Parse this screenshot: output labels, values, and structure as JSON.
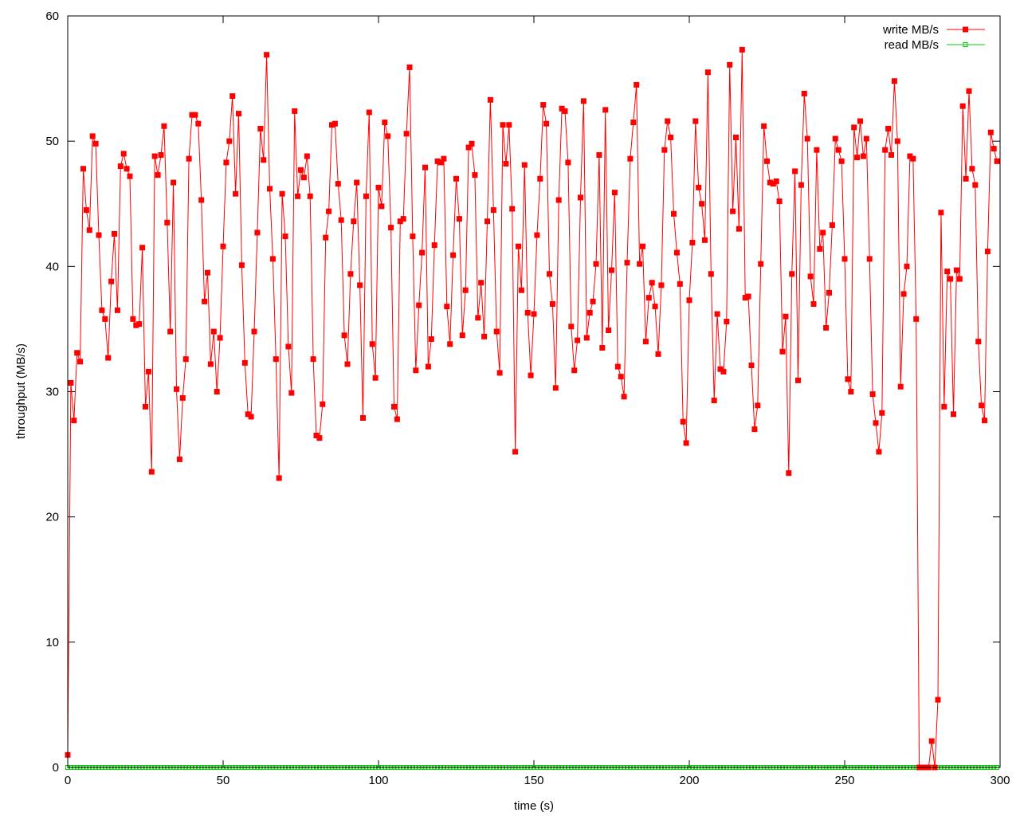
{
  "chart_data": {
    "type": "line",
    "xlabel": "time (s)",
    "ylabel": "throughput (MB/s)",
    "xlim": [
      0,
      300
    ],
    "ylim": [
      0,
      60
    ],
    "xticks": [
      0,
      50,
      100,
      150,
      200,
      250,
      300
    ],
    "yticks": [
      0,
      10,
      20,
      30,
      40,
      50,
      60
    ],
    "grid": false,
    "legend_position": "top-right",
    "x_start": 0,
    "x_step": 1,
    "series": [
      {
        "name": "write MB/s",
        "color": "#ff0000",
        "marker": "filled-square",
        "values": [
          1.0,
          30.7,
          27.7,
          33.1,
          32.4,
          47.8,
          44.5,
          42.9,
          50.4,
          49.8,
          42.5,
          36.5,
          35.8,
          32.7,
          38.8,
          42.6,
          36.5,
          48.0,
          49.0,
          47.8,
          47.2,
          35.8,
          35.3,
          35.4,
          41.5,
          28.8,
          31.6,
          23.6,
          48.8,
          47.3,
          48.9,
          51.2,
          43.5,
          34.8,
          46.7,
          30.2,
          24.6,
          29.5,
          32.6,
          48.6,
          52.1,
          52.1,
          51.4,
          45.3,
          37.2,
          39.5,
          32.2,
          34.8,
          30.0,
          34.3,
          41.6,
          48.3,
          50.0,
          53.6,
          45.8,
          52.2,
          40.1,
          32.3,
          28.2,
          28.0,
          34.8,
          42.7,
          51.0,
          48.5,
          56.9,
          46.2,
          40.6,
          32.6,
          23.1,
          45.8,
          42.4,
          33.6,
          29.9,
          52.4,
          45.6,
          47.7,
          47.1,
          48.8,
          45.6,
          32.6,
          26.5,
          26.3,
          29.0,
          42.3,
          44.4,
          51.3,
          51.4,
          46.6,
          43.7,
          34.5,
          32.2,
          39.4,
          43.6,
          46.7,
          38.5,
          27.9,
          45.6,
          52.3,
          33.8,
          31.1,
          46.3,
          44.8,
          51.5,
          50.4,
          43.1,
          28.8,
          27.8,
          43.6,
          43.8,
          50.6,
          55.9,
          42.4,
          31.7,
          36.9,
          41.1,
          47.9,
          32.0,
          34.2,
          41.7,
          48.4,
          48.3,
          48.6,
          36.8,
          33.8,
          40.9,
          47.0,
          43.8,
          34.5,
          38.1,
          49.5,
          49.8,
          47.3,
          35.9,
          38.7,
          34.4,
          43.6,
          53.3,
          44.5,
          34.8,
          31.5,
          51.3,
          48.2,
          51.3,
          44.6,
          25.2,
          41.6,
          38.1,
          48.1,
          36.3,
          31.3,
          36.2,
          42.5,
          47.0,
          52.9,
          51.4,
          39.4,
          37.0,
          30.3,
          45.3,
          52.6,
          52.4,
          48.3,
          35.2,
          31.7,
          34.1,
          45.5,
          53.2,
          34.3,
          36.3,
          37.2,
          40.2,
          48.9,
          33.5,
          52.5,
          34.9,
          39.7,
          45.9,
          32.0,
          31.2,
          29.6,
          40.3,
          48.6,
          51.5,
          54.5,
          40.2,
          41.6,
          34.0,
          37.5,
          38.7,
          36.8,
          33.0,
          38.5,
          49.3,
          51.6,
          50.3,
          44.2,
          41.1,
          38.6,
          27.6,
          25.9,
          37.3,
          41.9,
          51.6,
          46.3,
          45.0,
          42.1,
          55.5,
          39.4,
          29.3,
          36.2,
          31.8,
          31.6,
          35.6,
          56.1,
          44.4,
          50.3,
          43.0,
          57.3,
          37.5,
          37.6,
          32.1,
          27.0,
          28.9,
          40.2,
          51.2,
          48.4,
          46.7,
          46.6,
          46.8,
          45.2,
          33.2,
          36.0,
          23.5,
          39.4,
          47.6,
          30.9,
          46.5,
          53.8,
          50.2,
          39.2,
          37.0,
          49.3,
          41.4,
          42.7,
          35.1,
          37.9,
          43.3,
          50.2,
          49.3,
          48.4,
          40.6,
          31.0,
          30.0,
          51.1,
          48.7,
          51.6,
          48.8,
          50.2,
          40.6,
          29.8,
          27.5,
          25.2,
          28.3,
          49.3,
          51.0,
          48.9,
          54.8,
          50.0,
          30.4,
          37.8,
          40.0,
          48.8,
          48.6,
          35.8,
          0.0,
          0.0,
          0.0,
          0.0,
          2.1,
          0.0,
          5.4,
          44.3,
          28.8,
          39.6,
          39.0,
          28.2,
          39.7,
          39.0,
          52.8,
          47.0,
          54.0,
          47.8,
          46.5,
          34.0,
          28.9,
          27.7,
          41.2,
          50.7,
          49.4,
          48.4
        ]
      },
      {
        "name": "read MB/s",
        "color": "#00cc00",
        "marker": "open-square",
        "constant_value": 0
      }
    ]
  }
}
